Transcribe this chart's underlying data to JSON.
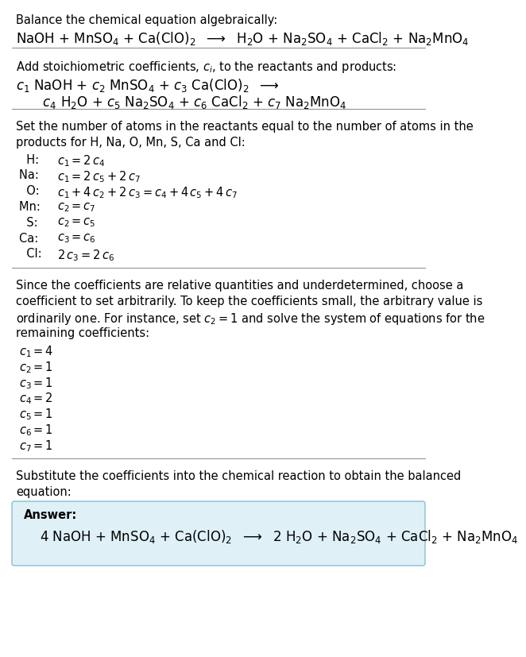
{
  "title_line": "Balance the chemical equation algebraically:",
  "equation_line": "NaOH + MnSO$_4$ + Ca(ClO)$_2$  $\\longrightarrow$  H$_2$O + Na$_2$SO$_4$ + CaCl$_2$ + Na$_2$MnO$_4$",
  "section2_intro": "Add stoichiometric coefficients, $c_i$, to the reactants and products:",
  "section2_line1": "$c_1$ NaOH + $c_2$ MnSO$_4$ + $c_3$ Ca(ClO)$_2$  $\\longrightarrow$",
  "section2_line2": "   $c_4$ H$_2$O + $c_5$ Na$_2$SO$_4$ + $c_6$ CaCl$_2$ + $c_7$ Na$_2$MnO$_4$",
  "section3_intro1": "Set the number of atoms in the reactants equal to the number of atoms in the",
  "section3_intro2": "products for H, Na, O, Mn, S, Ca and Cl:",
  "equations": [
    [
      "  H:  ",
      "$c_1 = 2\\,c_4$"
    ],
    [
      "Na:  ",
      "$c_1 = 2\\,c_5 + 2\\,c_7$"
    ],
    [
      "  O:  ",
      "$c_1 + 4\\,c_2 + 2\\,c_3 = c_4 + 4\\,c_5 + 4\\,c_7$"
    ],
    [
      "Mn:  ",
      "$c_2 = c_7$"
    ],
    [
      "  S:  ",
      "$c_2 = c_5$"
    ],
    [
      "Ca:  ",
      "$c_3 = c_6$"
    ],
    [
      "  Cl:  ",
      "$2\\,c_3 = 2\\,c_6$"
    ]
  ],
  "section4_intro1": "Since the coefficients are relative quantities and underdetermined, choose a",
  "section4_intro2": "coefficient to set arbitrarily. To keep the coefficients small, the arbitrary value is",
  "section4_intro3": "ordinarily one. For instance, set $c_2 = 1$ and solve the system of equations for the",
  "section4_intro4": "remaining coefficients:",
  "coeff_lines": [
    "$c_1 = 4$",
    "$c_2 = 1$",
    "$c_3 = 1$",
    "$c_4 = 2$",
    "$c_5 = 1$",
    "$c_6 = 1$",
    "$c_7 = 1$"
  ],
  "section5_intro1": "Substitute the coefficients into the chemical reaction to obtain the balanced",
  "section5_intro2": "equation:",
  "answer_label": "Answer:",
  "answer_equation": "4 NaOH + MnSO$_4$ + Ca(ClO)$_2$  $\\longrightarrow$  2 H$_2$O + Na$_2$SO$_4$ + CaCl$_2$ + Na$_2$MnO$_4$",
  "bg_color": "#ffffff",
  "text_color": "#000000",
  "answer_box_facecolor": "#dff0f7",
  "answer_box_edgecolor": "#8bbdd4",
  "hr_color": "#888888",
  "font_size": 10.5
}
